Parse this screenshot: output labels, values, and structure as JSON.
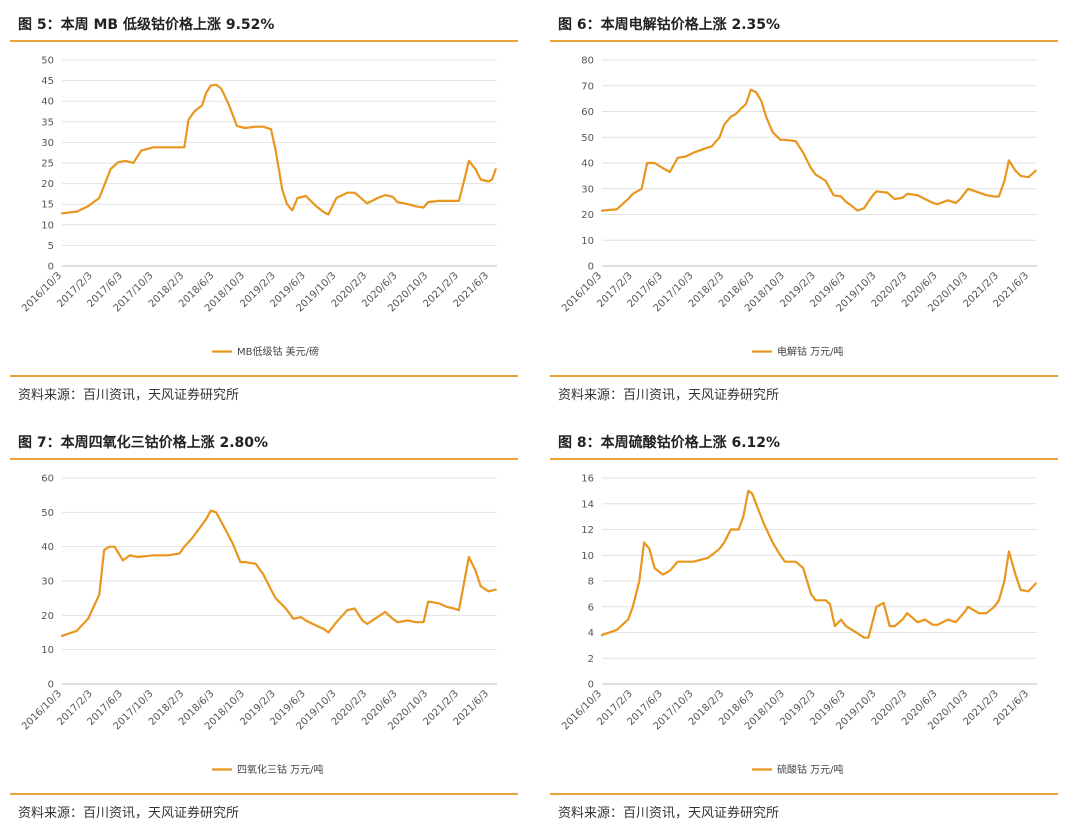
{
  "source_label": "资料来源：百川资讯，天风证券研究所",
  "series_color": "#E8961E",
  "x_tick_labels": [
    "2016/10/3",
    "2017/2/3",
    "2017/6/3",
    "2017/10/3",
    "2018/2/3",
    "2018/6/3",
    "2018/10/3",
    "2019/2/3",
    "2019/6/3",
    "2019/10/3",
    "2020/2/3",
    "2020/6/3",
    "2020/10/3",
    "2021/2/3",
    "2021/6/3"
  ],
  "chart_data": [
    {
      "type": "line",
      "title": "图 5：本周 MB 低级钴价格上涨 9.52%",
      "ylim": [
        0,
        50
      ],
      "ystep": 5,
      "grid": true,
      "legend_position": "bottom",
      "series": [
        {
          "name": "MB低级钴 美元/磅",
          "x": [
            "2016/10/3",
            "2016/12/1",
            "2017/1/15",
            "2017/3/1",
            "2017/4/15",
            "2017/5/15",
            "2017/6/15",
            "2017/7/15",
            "2017/8/15",
            "2017/10/3",
            "2017/12/1",
            "2018/1/15",
            "2018/2/3",
            "2018/2/20",
            "2018/3/15",
            "2018/4/15",
            "2018/5/1",
            "2018/5/20",
            "2018/6/10",
            "2018/7/1",
            "2018/8/1",
            "2018/9/1",
            "2018/10/3",
            "2018/11/15",
            "2018/12/15",
            "2019/1/15",
            "2019/2/3",
            "2019/3/1",
            "2019/3/20",
            "2019/4/10",
            "2019/5/1",
            "2019/6/3",
            "2019/7/15",
            "2019/8/15",
            "2019/9/1",
            "2019/10/3",
            "2019/11/15",
            "2019/12/15",
            "2020/1/15",
            "2020/2/3",
            "2020/3/15",
            "2020/4/15",
            "2020/5/15",
            "2020/6/3",
            "2020/7/15",
            "2020/8/15",
            "2020/9/15",
            "2020/10/3",
            "2020/11/15",
            "2020/12/15",
            "2021/1/15",
            "2021/2/3",
            "2021/2/25",
            "2021/3/15",
            "2021/4/10",
            "2021/5/1",
            "2021/6/1",
            "2021/6/15",
            "2021/6/30"
          ],
          "values": [
            12.8,
            13.2,
            14.5,
            16.5,
            23.5,
            25.2,
            25.5,
            25.0,
            28.0,
            28.8,
            28.8,
            28.8,
            28.8,
            35.5,
            37.5,
            39.0,
            42.0,
            43.8,
            44.0,
            43.0,
            39.0,
            34.0,
            33.5,
            33.8,
            33.8,
            33.2,
            28.0,
            18.5,
            15.0,
            13.5,
            16.5,
            17.0,
            14.5,
            13.0,
            12.5,
            16.5,
            17.8,
            17.8,
            16.2,
            15.2,
            16.5,
            17.2,
            16.8,
            15.5,
            15.0,
            14.5,
            14.2,
            15.5,
            15.8,
            15.8,
            15.8,
            15.8,
            21.0,
            25.5,
            23.5,
            21.0,
            20.5,
            21.0,
            23.5
          ]
        }
      ]
    },
    {
      "type": "line",
      "title": "图 6：本周电解钴价格上涨 2.35%",
      "ylim": [
        0,
        80
      ],
      "ystep": 10,
      "grid": true,
      "legend_position": "bottom",
      "series": [
        {
          "name": "电解钴 万元/吨",
          "x": [
            "2016/10/3",
            "2016/12/1",
            "2017/1/15",
            "2017/2/3",
            "2017/3/10",
            "2017/4/1",
            "2017/5/1",
            "2017/6/3",
            "2017/7/1",
            "2017/8/1",
            "2017/9/1",
            "2017/10/3",
            "2017/11/15",
            "2017/12/15",
            "2018/1/15",
            "2018/2/3",
            "2018/3/1",
            "2018/3/20",
            "2018/4/10",
            "2018/5/1",
            "2018/5/20",
            "2018/6/10",
            "2018/7/1",
            "2018/7/20",
            "2018/8/15",
            "2018/9/15",
            "2018/10/3",
            "2018/11/15",
            "2018/12/15",
            "2019/1/15",
            "2019/2/3",
            "2019/3/15",
            "2019/4/15",
            "2019/5/15",
            "2019/6/3",
            "2019/7/1",
            "2019/7/20",
            "2019/8/15",
            "2019/9/15",
            "2019/10/3",
            "2019/11/15",
            "2019/12/15",
            "2020/1/15",
            "2020/2/3",
            "2020/3/15",
            "2020/4/15",
            "2020/5/15",
            "2020/6/3",
            "2020/7/15",
            "2020/8/15",
            "2020/9/1",
            "2020/10/3",
            "2020/11/15",
            "2020/12/15",
            "2021/1/15",
            "2021/2/3",
            "2021/2/25",
            "2021/3/15",
            "2021/4/10",
            "2021/5/1",
            "2021/6/1",
            "2021/6/30"
          ],
          "values": [
            21.5,
            22.0,
            26.0,
            28.0,
            30.0,
            40.0,
            40.0,
            38.0,
            36.5,
            42.0,
            42.5,
            44.0,
            45.5,
            46.5,
            50.0,
            55.0,
            58.0,
            59.0,
            61.0,
            63.0,
            68.5,
            67.5,
            64.0,
            58.0,
            52.0,
            49.0,
            49.0,
            48.5,
            44.0,
            38.0,
            35.5,
            33.0,
            27.5,
            27.0,
            25.0,
            23.0,
            21.5,
            22.5,
            27.0,
            29.0,
            28.5,
            26.0,
            26.5,
            28.0,
            27.5,
            26.0,
            24.5,
            24.0,
            25.5,
            24.5,
            26.0,
            30.0,
            28.5,
            27.5,
            27.0,
            27.0,
            33.0,
            41.0,
            37.0,
            35.0,
            34.5,
            37.0
          ]
        }
      ]
    },
    {
      "type": "line",
      "title": "图 7：本周四氧化三钴价格上涨 2.80%",
      "ylim": [
        0,
        60
      ],
      "ystep": 10,
      "grid": true,
      "legend_position": "bottom",
      "series": [
        {
          "name": "四氧化三钴 万元/吨",
          "x": [
            "2016/10/3",
            "2016/12/1",
            "2017/1/15",
            "2017/2/3",
            "2017/3/1",
            "2017/3/20",
            "2017/4/10",
            "2017/5/1",
            "2017/6/3",
            "2017/7/1",
            "2017/8/1",
            "2017/10/3",
            "2017/12/1",
            "2018/1/15",
            "2018/2/3",
            "2018/3/1",
            "2018/4/1",
            "2018/5/1",
            "2018/5/20",
            "2018/6/10",
            "2018/7/10",
            "2018/8/15",
            "2018/9/15",
            "2018/10/3",
            "2018/11/15",
            "2018/12/15",
            "2019/1/15",
            "2019/2/3",
            "2019/3/15",
            "2019/4/15",
            "2019/5/15",
            "2019/6/3",
            "2019/7/15",
            "2019/8/15",
            "2019/9/1",
            "2019/10/3",
            "2019/11/15",
            "2019/12/15",
            "2020/1/15",
            "2020/2/3",
            "2020/3/15",
            "2020/4/15",
            "2020/5/15",
            "2020/6/3",
            "2020/7/15",
            "2020/8/15",
            "2020/9/15",
            "2020/10/3",
            "2020/11/15",
            "2020/12/15",
            "2021/1/15",
            "2021/2/3",
            "2021/2/25",
            "2021/3/15",
            "2021/4/10",
            "2021/5/1",
            "2021/6/1",
            "2021/6/30"
          ],
          "values": [
            14.0,
            15.5,
            19.0,
            22.0,
            26.0,
            39.0,
            40.0,
            40.0,
            36.0,
            37.5,
            37.0,
            37.5,
            37.5,
            38.0,
            40.0,
            42.0,
            45.0,
            48.0,
            50.5,
            50.0,
            46.0,
            41.0,
            35.5,
            35.5,
            35.0,
            32.0,
            27.5,
            25.0,
            22.0,
            19.0,
            19.5,
            18.5,
            17.0,
            16.0,
            15.0,
            18.0,
            21.5,
            22.0,
            18.5,
            17.5,
            19.5,
            21.0,
            19.0,
            18.0,
            18.5,
            18.0,
            18.0,
            24.0,
            23.5,
            22.5,
            22.0,
            21.5,
            30.0,
            37.0,
            33.0,
            28.5,
            27.0,
            27.5
          ]
        }
      ]
    },
    {
      "type": "line",
      "title": "图 8：本周硫酸钴价格上涨 6.12%",
      "ylim": [
        0,
        16
      ],
      "ystep": 2,
      "grid": true,
      "legend_position": "bottom",
      "series": [
        {
          "name": "硫酸钴 万元/吨",
          "x": [
            "2016/10/3",
            "2016/12/1",
            "2017/1/15",
            "2017/2/3",
            "2017/3/1",
            "2017/3/20",
            "2017/4/10",
            "2017/5/1",
            "2017/6/3",
            "2017/7/1",
            "2017/8/1",
            "2017/10/3",
            "2017/12/1",
            "2018/1/15",
            "2018/2/3",
            "2018/3/1",
            "2018/4/1",
            "2018/4/20",
            "2018/5/10",
            "2018/5/25",
            "2018/6/10",
            "2018/7/10",
            "2018/8/15",
            "2018/9/15",
            "2018/10/3",
            "2018/11/15",
            "2018/12/15",
            "2019/1/15",
            "2019/2/3",
            "2019/3/15",
            "2019/4/1",
            "2019/4/20",
            "2019/5/15",
            "2019/6/3",
            "2019/7/15",
            "2019/8/15",
            "2019/9/1",
            "2019/10/3",
            "2019/11/1",
            "2019/11/25",
            "2019/12/15",
            "2020/1/15",
            "2020/2/3",
            "2020/3/15",
            "2020/4/15",
            "2020/5/15",
            "2020/6/3",
            "2020/7/15",
            "2020/8/15",
            "2020/9/15",
            "2020/10/3",
            "2020/11/15",
            "2020/12/15",
            "2021/1/15",
            "2021/2/3",
            "2021/2/25",
            "2021/3/15",
            "2021/4/10",
            "2021/5/1",
            "2021/6/1",
            "2021/6/30"
          ],
          "values": [
            3.8,
            4.2,
            5.0,
            6.0,
            8.0,
            11.0,
            10.5,
            9.0,
            8.5,
            8.8,
            9.5,
            9.5,
            9.8,
            10.5,
            11.0,
            12.0,
            12.0,
            13.0,
            15.0,
            14.8,
            14.0,
            12.5,
            11.0,
            10.0,
            9.5,
            9.5,
            9.0,
            7.0,
            6.5,
            6.5,
            6.2,
            4.5,
            5.0,
            4.5,
            4.0,
            3.6,
            3.6,
            6.0,
            6.3,
            4.5,
            4.5,
            5.0,
            5.5,
            4.8,
            5.0,
            4.6,
            4.6,
            5.0,
            4.8,
            5.5,
            6.0,
            5.5,
            5.5,
            6.0,
            6.5,
            8.0,
            10.3,
            8.5,
            7.3,
            7.2,
            7.8
          ]
        }
      ]
    }
  ]
}
